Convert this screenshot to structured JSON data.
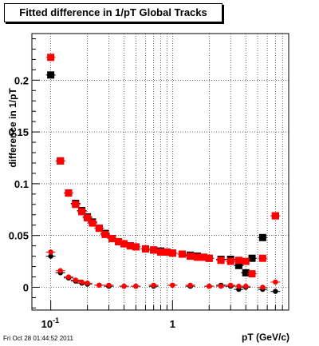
{
  "chart_data": {
    "type": "scatter",
    "title": "Fitted difference in 1/pT  Global Tracks",
    "xlabel": "pT (GeV/c)",
    "ylabel": "difference in 1/pT",
    "xscale": "log",
    "xlim": [
      0.07,
      9.0
    ],
    "ylim": [
      -0.022,
      0.245
    ],
    "x_tick_labels": [
      "10^-1",
      "1"
    ],
    "y_tick_labels": [
      "0",
      "0.05",
      "0.1",
      "0.15",
      "0.2"
    ],
    "grid": true,
    "legend": "none",
    "series": [
      {
        "color": "#000000",
        "marker": "square",
        "points": [
          [
            0.1,
            0.205
          ],
          [
            0.12,
            0.122
          ],
          [
            0.14,
            0.091
          ],
          [
            0.16,
            0.081
          ],
          [
            0.18,
            0.074
          ],
          [
            0.2,
            0.068
          ],
          [
            0.22,
            0.063
          ],
          [
            0.25,
            0.057
          ],
          [
            0.28,
            0.052
          ],
          [
            0.32,
            0.047
          ],
          [
            0.36,
            0.044
          ],
          [
            0.4,
            0.042
          ],
          [
            0.45,
            0.04
          ],
          [
            0.5,
            0.039
          ],
          [
            0.6,
            0.037
          ],
          [
            0.7,
            0.036
          ],
          [
            0.8,
            0.035
          ],
          [
            0.9,
            0.034
          ],
          [
            1.0,
            0.033
          ],
          [
            1.2,
            0.032
          ],
          [
            1.4,
            0.031
          ],
          [
            1.6,
            0.03
          ],
          [
            1.8,
            0.029
          ],
          [
            2.0,
            0.028
          ],
          [
            2.5,
            0.027
          ],
          [
            3.0,
            0.027
          ],
          [
            3.5,
            0.021
          ],
          [
            4.0,
            0.014
          ],
          [
            4.5,
            0.028
          ],
          [
            5.5,
            0.048
          ],
          [
            7.0,
            0.069
          ]
        ]
      },
      {
        "color": "#ff0000",
        "marker": "square",
        "points": [
          [
            0.1,
            0.222
          ],
          [
            0.12,
            0.122
          ],
          [
            0.14,
            0.091
          ],
          [
            0.16,
            0.08
          ],
          [
            0.18,
            0.073
          ],
          [
            0.2,
            0.067
          ],
          [
            0.22,
            0.062
          ],
          [
            0.25,
            0.057
          ],
          [
            0.28,
            0.051
          ],
          [
            0.32,
            0.047
          ],
          [
            0.36,
            0.044
          ],
          [
            0.4,
            0.042
          ],
          [
            0.45,
            0.04
          ],
          [
            0.5,
            0.039
          ],
          [
            0.6,
            0.037
          ],
          [
            0.7,
            0.036
          ],
          [
            0.8,
            0.034
          ],
          [
            0.9,
            0.034
          ],
          [
            1.0,
            0.033
          ],
          [
            1.2,
            0.032
          ],
          [
            1.4,
            0.03
          ],
          [
            1.6,
            0.029
          ],
          [
            1.8,
            0.029
          ],
          [
            2.0,
            0.028
          ],
          [
            2.5,
            0.026
          ],
          [
            3.0,
            0.025
          ],
          [
            3.5,
            0.026
          ],
          [
            4.0,
            0.025
          ],
          [
            4.5,
            0.013
          ],
          [
            5.5,
            0.028
          ],
          [
            7.0,
            0.069
          ]
        ]
      },
      {
        "color": "#000000",
        "marker": "circle",
        "points": [
          [
            0.1,
            0.03
          ],
          [
            0.12,
            0.014
          ],
          [
            0.14,
            0.009
          ],
          [
            0.16,
            0.006
          ],
          [
            0.18,
            0.004
          ],
          [
            0.2,
            0.003
          ],
          [
            0.25,
            0.002
          ],
          [
            0.3,
            0.001
          ],
          [
            0.4,
            0.001
          ],
          [
            0.5,
            0.001
          ],
          [
            0.7,
            0.001
          ],
          [
            1.0,
            0.002
          ],
          [
            1.4,
            0.001
          ],
          [
            2.0,
            0.001
          ],
          [
            2.5,
            0.002
          ],
          [
            3.0,
            0.001
          ],
          [
            3.5,
            -0.002
          ],
          [
            4.0,
            0.0
          ],
          [
            5.5,
            -0.002
          ],
          [
            7.0,
            -0.004
          ]
        ]
      },
      {
        "color": "#ff0000",
        "marker": "circle",
        "points": [
          [
            0.1,
            0.034
          ],
          [
            0.12,
            0.016
          ],
          [
            0.14,
            0.01
          ],
          [
            0.16,
            0.007
          ],
          [
            0.18,
            0.005
          ],
          [
            0.2,
            0.004
          ],
          [
            0.25,
            0.002
          ],
          [
            0.3,
            0.002
          ],
          [
            0.4,
            0.001
          ],
          [
            0.5,
            0.001
          ],
          [
            0.7,
            0.002
          ],
          [
            1.0,
            0.002
          ],
          [
            1.4,
            0.002
          ],
          [
            2.0,
            0.001
          ],
          [
            2.5,
            0.001
          ],
          [
            3.0,
            0.002
          ],
          [
            3.5,
            0.001
          ],
          [
            4.0,
            0.001
          ],
          [
            5.5,
            0.0
          ],
          [
            7.0,
            0.005
          ]
        ]
      }
    ]
  },
  "footer": {
    "date_stamp": "Fri Oct 28 01:44:52 2011"
  }
}
